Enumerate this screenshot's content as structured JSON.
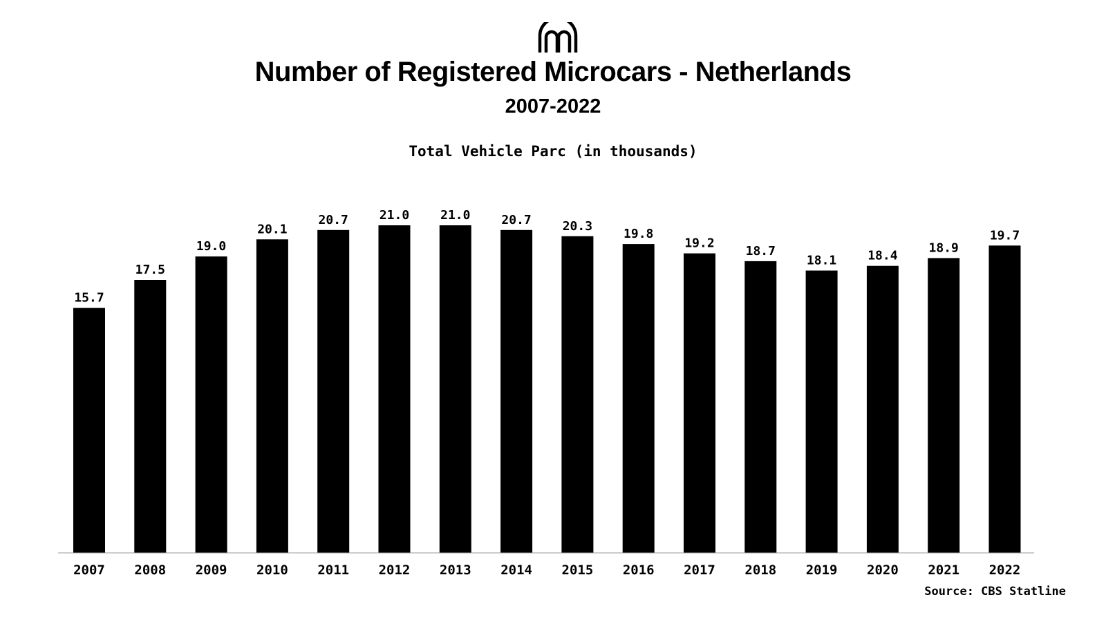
{
  "header": {
    "logo_icon": "arches-logo-icon",
    "title": "Number of Registered Microcars - Netherlands",
    "subtitle": "2007-2022"
  },
  "footer": {
    "source": "Source: CBS Statline"
  },
  "colors": {
    "bar": "#000000",
    "background": "#ffffff",
    "axis": "#999999"
  },
  "chart_data": {
    "type": "bar",
    "title": "Total Vehicle Parc (in thousands)",
    "xlabel": "",
    "ylabel": "",
    "categories": [
      "2007",
      "2008",
      "2009",
      "2010",
      "2011",
      "2012",
      "2013",
      "2014",
      "2015",
      "2016",
      "2017",
      "2018",
      "2019",
      "2020",
      "2021",
      "2022"
    ],
    "values": [
      15.7,
      17.5,
      19.0,
      20.1,
      20.7,
      21.0,
      21.0,
      20.7,
      20.3,
      19.8,
      19.2,
      18.7,
      18.1,
      18.4,
      18.9,
      19.7
    ],
    "value_labels": [
      "15.7",
      "17.5",
      "19.0",
      "20.1",
      "20.7",
      "21.0",
      "21.0",
      "20.7",
      "20.3",
      "19.8",
      "19.2",
      "18.7",
      "18.1",
      "18.4",
      "18.9",
      "19.7"
    ],
    "ylim": [
      0,
      21.0
    ],
    "grid": false,
    "legend": "none"
  }
}
